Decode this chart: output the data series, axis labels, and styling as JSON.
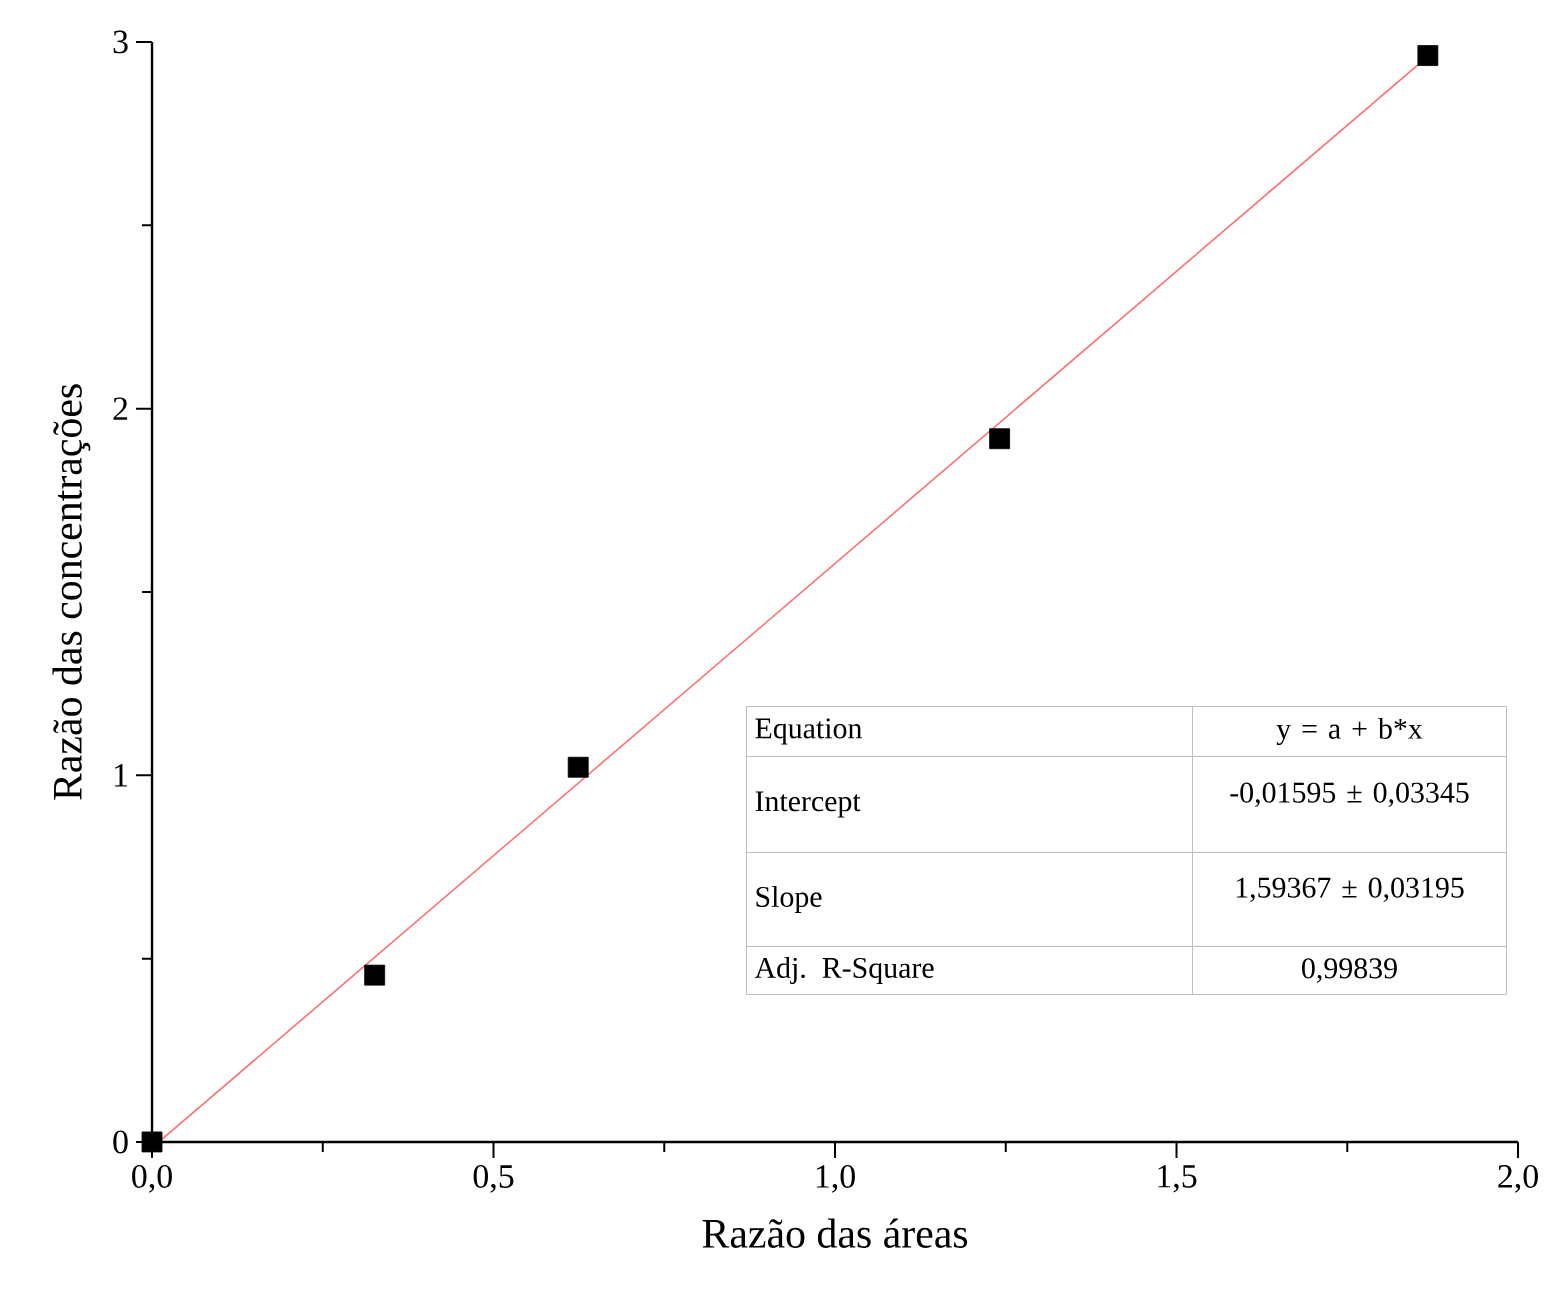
{
  "chart_data": {
    "type": "scatter",
    "xlabel": "Razão das áreas",
    "ylabel": "Razão das concentrações",
    "xlim": [
      0,
      2.0
    ],
    "ylim": [
      0,
      3
    ],
    "xticks": [
      {
        "value": 0,
        "label": "0,0"
      },
      {
        "value": 0.5,
        "label": "0,5"
      },
      {
        "value": 1.0,
        "label": "1,0"
      },
      {
        "value": 1.5,
        "label": "1,5"
      },
      {
        "value": 2.0,
        "label": "2,0"
      }
    ],
    "yticks": [
      0,
      1,
      2,
      3
    ],
    "grid": false,
    "series": [
      {
        "marker": "square",
        "color": "#000000",
        "x": [
          0,
          0.326,
          0.624,
          1.241,
          1.868
        ],
        "values": [
          0,
          0.455,
          1.022,
          1.918,
          2.963
        ]
      },
      {
        "type": "line",
        "color": "#ff7070",
        "x": [
          0.01,
          1.868
        ],
        "values": [
          0.0,
          2.961
        ]
      }
    ],
    "annotations": [
      "Equation",
      "y = a + b*x",
      "Intercept",
      "-0,01595 ± 0,03345",
      "Slope",
      "1,59367 ± 0,03195",
      "Adj. R-Square",
      "0,99839"
    ]
  }
}
